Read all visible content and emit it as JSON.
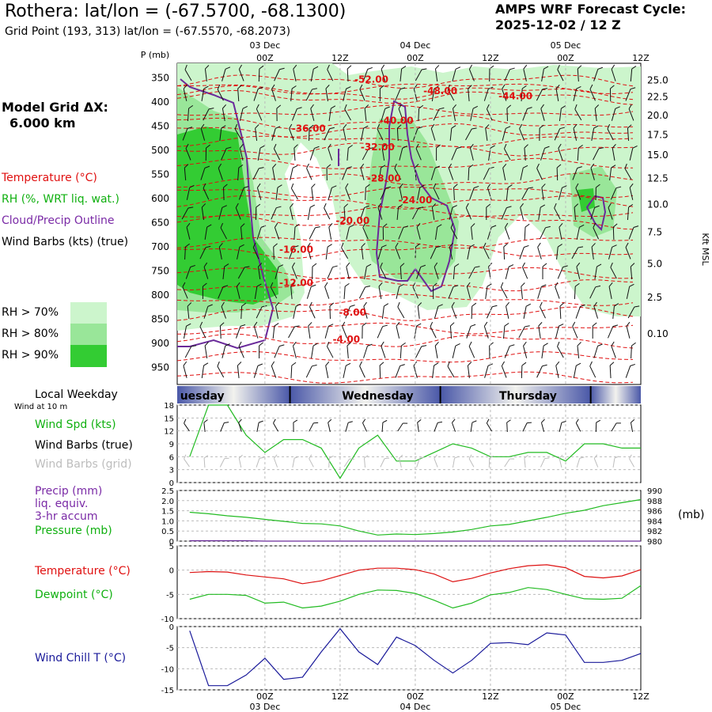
{
  "header": {
    "title": "Rothera:  lat/lon = (-67.5700, -68.1300)",
    "subtitle": "Grid Point (193, 313) lat/lon = (-67.5570, -68.2073)",
    "cycle_line1": "AMPS WRF Forecast Cycle:",
    "cycle_line2": "2025-12-02 / 12  Z",
    "grid_dx_label": "Model Grid ΔX:",
    "grid_dx_value": "6.000 km"
  },
  "legend": {
    "temperature": "Temperature (°C)",
    "rh": "RH (%, WRT liq. wat.)",
    "cloud": "Cloud/Precip Outline",
    "wind_barbs": "Wind Barbs (kts) (true)",
    "rh_70": "RH > 70%",
    "rh_80": "RH > 80%",
    "rh_90": "RH > 90%"
  },
  "colors": {
    "rh70": "#ccf5cc",
    "rh80": "#99e699",
    "rh90": "#33cc33",
    "temp": "#e01010",
    "cloud": "#6a2a9a",
    "wind_spd": "#22bb22",
    "pressure": "#22bb22",
    "dewpoint": "#22bb22",
    "temperature": "#dd1111",
    "wind_chill": "#1a1a9a",
    "night": "#4a58a8"
  },
  "chart_data": [
    {
      "id": "cross_section",
      "type": "heatmap",
      "title": "Time-height cross section",
      "ylabel": "P (mb)",
      "y2label": "Kft MSL",
      "x_ticks_top": [
        "00Z",
        "12Z",
        "00Z",
        "12Z",
        "00Z",
        "12Z"
      ],
      "date_labels": [
        "03 Dec",
        "04 Dec",
        "05 Dec"
      ],
      "pressure_levels": [
        "350",
        "400",
        "450",
        "500",
        "550",
        "600",
        "650",
        "700",
        "750",
        "800",
        "850",
        "900",
        "950"
      ],
      "pressure_values": [
        350,
        400,
        450,
        500,
        550,
        600,
        650,
        700,
        750,
        800,
        850,
        900,
        950
      ],
      "p_range": [
        320,
        985
      ],
      "time_range_h": [
        -14,
        60
      ],
      "kft_labels": [
        "25.0",
        "22.5",
        "20.0",
        "17.5",
        "15.0",
        "12.5",
        "10.0",
        "7.5",
        "5.0",
        "2.5",
        "0.10"
      ],
      "kft_at_pressure": [
        355,
        390,
        428,
        468,
        510,
        558,
        612,
        670,
        735,
        805,
        880,
        962,
        985
      ],
      "temp_contours": [
        {
          "label": "-52.00",
          "t": 17,
          "p": 357
        },
        {
          "label": "-48.00",
          "t": 28,
          "p": 381
        },
        {
          "label": "-44.00",
          "t": 40,
          "p": 391
        },
        {
          "label": "-40.00",
          "t": 21,
          "p": 442
        },
        {
          "label": "-36.00",
          "t": 7,
          "p": 458
        },
        {
          "label": "-32.00",
          "t": 18,
          "p": 497
        },
        {
          "label": "-28.00",
          "t": 19,
          "p": 562
        },
        {
          "label": "-24.00",
          "t": 24,
          "p": 607
        },
        {
          "label": "-20.00",
          "t": 14,
          "p": 649
        },
        {
          "label": "-16.00",
          "t": 5,
          "p": 709
        },
        {
          "label": "-12.00",
          "t": 5,
          "p": 778
        },
        {
          "label": "-8.00",
          "t": 14,
          "p": 839
        },
        {
          "label": "-4.00",
          "t": 13,
          "p": 895
        }
      ]
    },
    {
      "id": "weekday_bar",
      "type": "table",
      "title": "Local Weekday",
      "days": [
        {
          "label": "uesday",
          "t_center": -10
        },
        {
          "label": "Wednesday",
          "t_center": 18
        },
        {
          "label": "Thursday",
          "t_center": 42
        }
      ],
      "boundaries_h": [
        4,
        28,
        52
      ],
      "subtitle": "Wind at 10 m"
    },
    {
      "id": "wind_speed",
      "type": "line",
      "ylabel": "Wind Spd (kts)",
      "labels": [
        "Wind Spd (kts)",
        "Wind Barbs (true)",
        "Wind Barbs (grid)"
      ],
      "ylim": [
        0,
        18
      ],
      "yticks": [
        "0",
        "3",
        "6",
        "9",
        "12",
        "15",
        "18"
      ],
      "ytick_values": [
        0,
        3,
        6,
        9,
        12,
        15,
        18
      ],
      "x": [
        -12,
        -9,
        -6,
        -3,
        0,
        3,
        6,
        9,
        12,
        15,
        18,
        21,
        24,
        27,
        30,
        33,
        36,
        39,
        42,
        45,
        48,
        51,
        54,
        57,
        60
      ],
      "values": [
        6,
        18,
        18,
        11,
        7,
        10,
        10,
        8,
        1,
        8,
        11,
        5,
        5,
        7,
        9,
        8,
        6,
        6,
        7,
        7,
        5,
        9,
        9,
        8,
        8
      ]
    },
    {
      "id": "precip_pressure",
      "type": "line",
      "series": [
        {
          "name": "Pressure (mb)",
          "ylim": [
            980,
            990
          ],
          "yticks": [
            "980",
            "982",
            "984",
            "986",
            "988",
            "990"
          ],
          "ytick_values": [
            980,
            982,
            984,
            986,
            988,
            990
          ],
          "x": [
            -12,
            -9,
            -6,
            -3,
            0,
            3,
            6,
            9,
            12,
            15,
            18,
            21,
            24,
            27,
            30,
            33,
            36,
            39,
            42,
            45,
            48,
            51,
            54,
            57,
            60
          ],
          "values": [
            985.7,
            985.4,
            985.0,
            984.7,
            984.3,
            983.9,
            983.5,
            983.4,
            983.0,
            982.0,
            981.2,
            981.4,
            981.3,
            981.5,
            981.8,
            982.3,
            983.0,
            983.3,
            984.0,
            984.7,
            985.5,
            986.1,
            987.0,
            987.6,
            988.2
          ]
        },
        {
          "name": "Precip (mm)",
          "ylim": [
            0,
            2.5
          ],
          "yticks": [
            "0",
            "0.5",
            "1.0",
            "1.5",
            "2.0",
            "2.5"
          ],
          "ytick_values": [
            0,
            0.5,
            1.0,
            1.5,
            2.0,
            2.5
          ],
          "x": [
            -12,
            -9,
            -6,
            -3,
            0,
            3,
            6,
            9,
            12,
            15,
            18,
            21,
            24,
            27,
            30,
            33,
            36,
            39,
            42,
            45,
            48,
            51,
            54,
            57,
            60
          ],
          "values": [
            0.02,
            0.02,
            0.02,
            0.02,
            0,
            0,
            0,
            0,
            0,
            0,
            0,
            0,
            0,
            0,
            0,
            0,
            0,
            0,
            0,
            0,
            0,
            0,
            0,
            0,
            0
          ]
        }
      ],
      "labels": [
        "Precip (mm)",
        "liq. equiv.",
        "3-hr accum",
        "Pressure (mb)"
      ],
      "y2label": "(mb)"
    },
    {
      "id": "temp_dewpoint",
      "type": "line",
      "ylim": [
        -10,
        5
      ],
      "yticks": [
        "5",
        "0",
        "-5",
        "-10"
      ],
      "ytick_values": [
        5,
        0,
        -5,
        -10
      ],
      "labels": [
        "Temperature (°C)",
        "Dewpoint (°C)"
      ],
      "series": [
        {
          "name": "Temperature (°C)",
          "x": [
            -12,
            -9,
            -6,
            -3,
            0,
            3,
            6,
            9,
            12,
            15,
            18,
            21,
            24,
            27,
            30,
            33,
            36,
            39,
            42,
            45,
            48,
            51,
            54,
            57,
            60
          ],
          "values": [
            -0.5,
            -0.3,
            -0.4,
            -1.0,
            -1.4,
            -1.8,
            -2.8,
            -2.2,
            -1.1,
            0.0,
            0.4,
            0.4,
            0.1,
            -0.8,
            -2.4,
            -1.7,
            -0.6,
            0.3,
            0.9,
            1.1,
            0.5,
            -1.3,
            -1.6,
            -1.2,
            0.1
          ]
        },
        {
          "name": "Dewpoint (°C)",
          "x": [
            -12,
            -9,
            -6,
            -3,
            0,
            3,
            6,
            9,
            12,
            15,
            18,
            21,
            24,
            27,
            30,
            33,
            36,
            39,
            42,
            45,
            48,
            51,
            54,
            57,
            60
          ],
          "values": [
            -6.0,
            -5.0,
            -5.0,
            -5.2,
            -6.8,
            -6.6,
            -7.8,
            -7.4,
            -6.4,
            -5.0,
            -4.1,
            -4.2,
            -4.8,
            -6.2,
            -7.8,
            -6.8,
            -5.1,
            -4.6,
            -3.6,
            -4.0,
            -5.0,
            -5.9,
            -6.0,
            -5.8,
            -3.2
          ]
        }
      ]
    },
    {
      "id": "wind_chill",
      "type": "line",
      "ylim": [
        -15,
        0
      ],
      "yticks": [
        "0",
        "-5",
        "-10",
        "-15"
      ],
      "ytick_values": [
        0,
        -5,
        -10,
        -15
      ],
      "labels": [
        "Wind Chill T (°C)"
      ],
      "x": [
        -12,
        -9,
        -6,
        -3,
        0,
        3,
        6,
        9,
        12,
        15,
        18,
        21,
        24,
        27,
        30,
        33,
        36,
        39,
        42,
        45,
        48,
        51,
        54,
        57,
        60
      ],
      "values": [
        -1.0,
        -14.0,
        -14.0,
        -11.5,
        -7.5,
        -12.5,
        -12.0,
        -6.0,
        -0.5,
        -6.0,
        -9.0,
        -2.5,
        -4.5,
        -8.0,
        -11.0,
        -8.0,
        -4.0,
        -3.8,
        -4.3,
        -1.5,
        -2.0,
        -8.5,
        -8.5,
        -8.0,
        -6.4
      ]
    }
  ],
  "bottom_axis": {
    "ticks": [
      "00Z",
      "12Z",
      "00Z",
      "12Z",
      "00Z",
      "12Z"
    ],
    "dates": [
      "03 Dec",
      "04 Dec",
      "05 Dec"
    ]
  }
}
